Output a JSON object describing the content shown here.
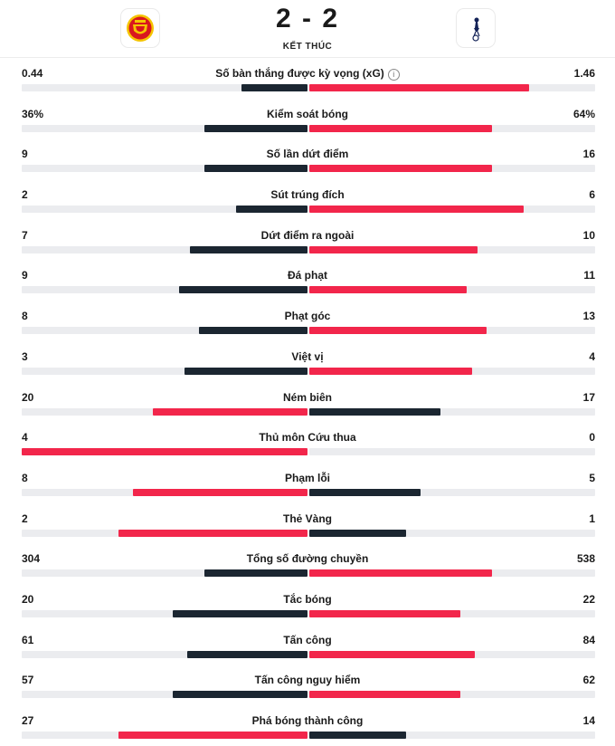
{
  "match": {
    "score": "2 - 2",
    "status": "KẾT THÚC",
    "home_logo_icon": "manchester-united-crest-icon",
    "away_logo_icon": "tottenham-crest-icon"
  },
  "colors": {
    "winner": "#f2264b",
    "loser": "#1b2631",
    "track": "#ebecef"
  },
  "stats": [
    {
      "label": "Số bàn thắng được kỳ vọng (xG)",
      "home": "0.44",
      "away": "1.46",
      "home_num": 0.44,
      "away_num": 1.46,
      "info": true,
      "home_fill": 0.23,
      "away_fill": 0.77
    },
    {
      "label": "Kiểm soát bóng",
      "home": "36%",
      "away": "64%",
      "home_num": 36,
      "away_num": 64,
      "home_fill": 0.36,
      "away_fill": 0.64
    },
    {
      "label": "Số lần dứt điểm",
      "home": "9",
      "away": "16",
      "home_num": 9,
      "away_num": 16,
      "home_fill": 0.36,
      "away_fill": 0.64
    },
    {
      "label": "Sút trúng đích",
      "home": "2",
      "away": "6",
      "home_num": 2,
      "away_num": 6,
      "home_fill": 0.25,
      "away_fill": 0.75
    },
    {
      "label": "Dứt điểm ra ngoài",
      "home": "7",
      "away": "10",
      "home_num": 7,
      "away_num": 10,
      "home_fill": 0.41,
      "away_fill": 0.59
    },
    {
      "label": "Đá phạt",
      "home": "9",
      "away": "11",
      "home_num": 9,
      "away_num": 11,
      "home_fill": 0.45,
      "away_fill": 0.55
    },
    {
      "label": "Phạt góc",
      "home": "8",
      "away": "13",
      "home_num": 8,
      "away_num": 13,
      "home_fill": 0.38,
      "away_fill": 0.62
    },
    {
      "label": "Việt vị",
      "home": "3",
      "away": "4",
      "home_num": 3,
      "away_num": 4,
      "home_fill": 0.43,
      "away_fill": 0.57
    },
    {
      "label": "Ném biên",
      "home": "20",
      "away": "17",
      "home_num": 20,
      "away_num": 17,
      "home_fill": 0.54,
      "away_fill": 0.46
    },
    {
      "label": "Thủ môn Cứu thua",
      "home": "4",
      "away": "0",
      "home_num": 4,
      "away_num": 0,
      "home_fill": 1.0,
      "away_fill": 0.0
    },
    {
      "label": "Phạm lỗi",
      "home": "8",
      "away": "5",
      "home_num": 8,
      "away_num": 5,
      "home_fill": 0.61,
      "away_fill": 0.39
    },
    {
      "label": "Thẻ Vàng",
      "home": "2",
      "away": "1",
      "home_num": 2,
      "away_num": 1,
      "home_fill": 0.66,
      "away_fill": 0.34
    },
    {
      "label": "Tổng số đường chuyền",
      "home": "304",
      "away": "538",
      "home_num": 304,
      "away_num": 538,
      "home_fill": 0.36,
      "away_fill": 0.64
    },
    {
      "label": "Tắc bóng",
      "home": "20",
      "away": "22",
      "home_num": 20,
      "away_num": 22,
      "home_fill": 0.47,
      "away_fill": 0.53
    },
    {
      "label": "Tấn công",
      "home": "61",
      "away": "84",
      "home_num": 61,
      "away_num": 84,
      "home_fill": 0.42,
      "away_fill": 0.58
    },
    {
      "label": "Tấn công nguy hiểm",
      "home": "57",
      "away": "62",
      "home_num": 57,
      "away_num": 62,
      "home_fill": 0.47,
      "away_fill": 0.53
    },
    {
      "label": "Phá bóng thành công",
      "home": "27",
      "away": "14",
      "home_num": 27,
      "away_num": 14,
      "home_fill": 0.66,
      "away_fill": 0.34
    }
  ]
}
